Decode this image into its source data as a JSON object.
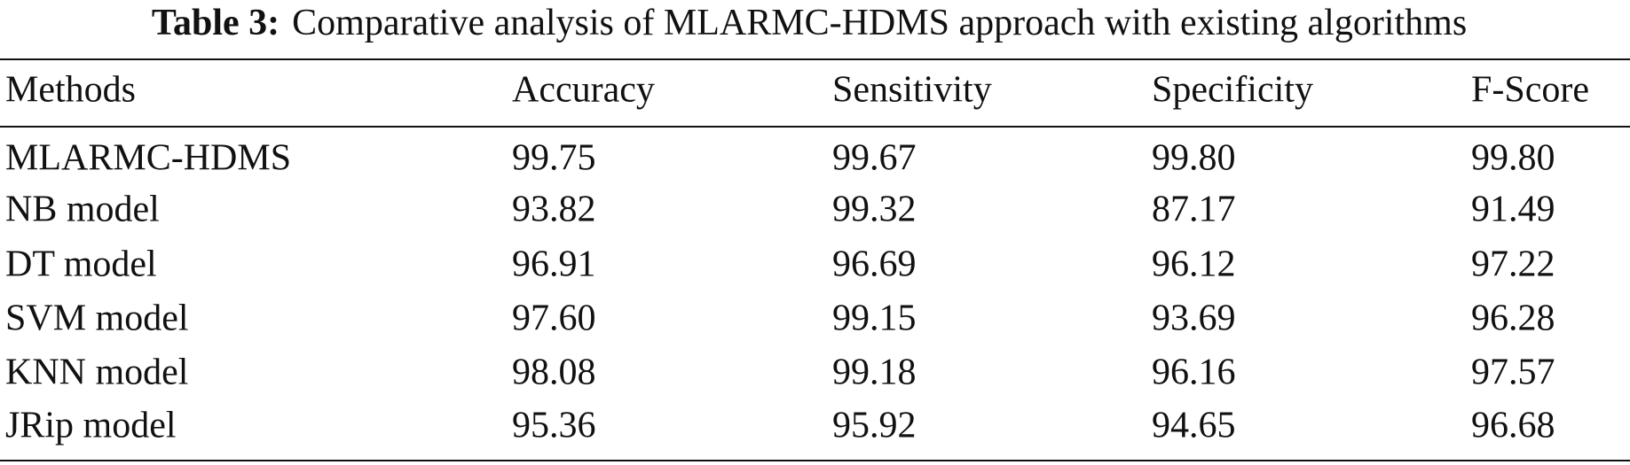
{
  "table": {
    "label": "Table 3:",
    "caption": "Comparative analysis of MLARMC-HDMS approach with existing algorithms",
    "header": [
      "Methods",
      "Accuracy",
      "Sensitivity",
      "Specificity",
      "F-Score"
    ],
    "rows": [
      [
        "MLARMC-HDMS",
        "99.75",
        "99.67",
        "99.80",
        "99.80"
      ],
      [
        "NB model",
        "93.82",
        "99.32",
        "87.17",
        "91.49"
      ],
      [
        "DT model",
        "96.91",
        "96.69",
        "96.12",
        "97.22"
      ],
      [
        "SVM model",
        "97.60",
        "99.15",
        "93.69",
        "96.28"
      ],
      [
        "KNN model",
        "98.08",
        "99.18",
        "96.16",
        "97.57"
      ],
      [
        "JRip model",
        "95.36",
        "95.92",
        "94.65",
        "96.68"
      ]
    ]
  }
}
